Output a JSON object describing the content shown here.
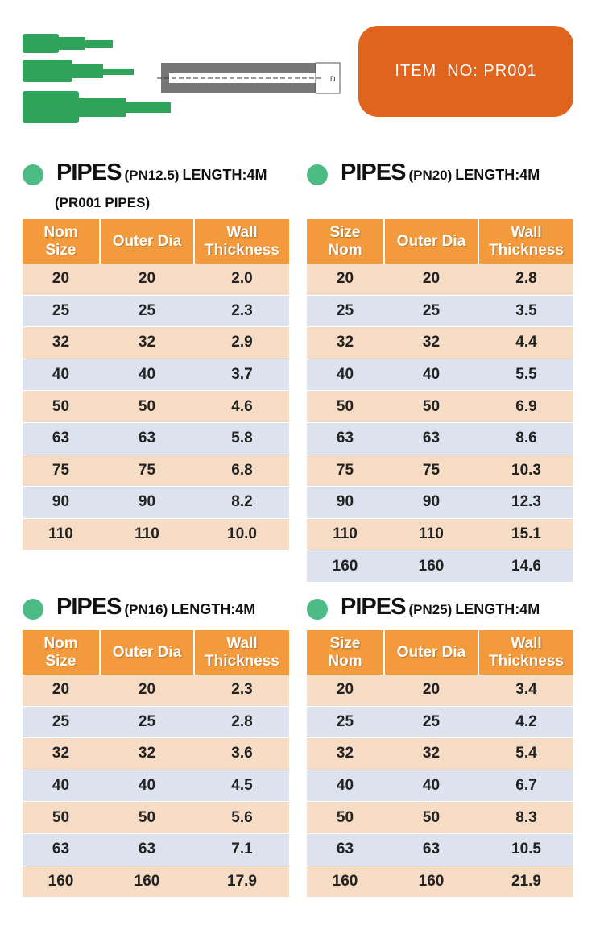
{
  "item_no": "ITEM  NO: PR001",
  "diagram_label": "D",
  "tables": [
    {
      "title": {
        "main": "PIPES",
        "spec": "(PN12.5)",
        "length": "LENGTH:4M"
      },
      "subtitle": "(PR001 PIPES)",
      "header": [
        [
          "Nom",
          "Size"
        ],
        [
          "Outer Dia"
        ],
        [
          "Wall",
          "Thickness"
        ]
      ],
      "rows": [
        [
          "20",
          "20",
          "2.0"
        ],
        [
          "25",
          "25",
          "2.3"
        ],
        [
          "32",
          "32",
          "2.9"
        ],
        [
          "40",
          "40",
          "3.7"
        ],
        [
          "50",
          "50",
          "4.6"
        ],
        [
          "63",
          "63",
          "5.8"
        ],
        [
          "75",
          "75",
          "6.8"
        ],
        [
          "90",
          "90",
          "8.2"
        ],
        [
          "110",
          "110",
          "10.0"
        ]
      ]
    },
    {
      "title": {
        "main": "PIPES",
        "spec": "(PN20)",
        "length": "LENGTH:4M"
      },
      "header": [
        [
          "Size",
          "Nom"
        ],
        [
          "Outer Dia"
        ],
        [
          "Wall",
          "Thickness"
        ]
      ],
      "rows": [
        [
          "20",
          "20",
          "2.8"
        ],
        [
          "25",
          "25",
          "3.5"
        ],
        [
          "32",
          "32",
          "4.4"
        ],
        [
          "40",
          "40",
          "5.5"
        ],
        [
          "50",
          "50",
          "6.9"
        ],
        [
          "63",
          "63",
          "8.6"
        ],
        [
          "75",
          "75",
          "10.3"
        ],
        [
          "90",
          "90",
          "12.3"
        ],
        [
          "110",
          "110",
          "15.1"
        ],
        [
          "160",
          "160",
          "14.6"
        ]
      ]
    },
    {
      "title": {
        "main": "PIPES",
        "spec": "(PN16)",
        "length": "LENGTH:4M"
      },
      "header": [
        [
          "Nom",
          "Size"
        ],
        [
          "Outer Dia"
        ],
        [
          "Wall",
          "Thickness"
        ]
      ],
      "rows": [
        [
          "20",
          "20",
          "2.3"
        ],
        [
          "25",
          "25",
          "2.8"
        ],
        [
          "32",
          "32",
          "3.6"
        ],
        [
          "40",
          "40",
          "4.5"
        ],
        [
          "50",
          "50",
          "5.6"
        ],
        [
          "63",
          "63",
          "7.1"
        ],
        [
          "160",
          "160",
          "17.9"
        ]
      ]
    },
    {
      "title": {
        "main": "PIPES",
        "spec": "(PN25)",
        "length": "LENGTH:4M"
      },
      "header": [
        [
          "Size",
          "Nom"
        ],
        [
          "Outer Dia"
        ],
        [
          "Wall",
          "Thickness"
        ]
      ],
      "rows": [
        [
          "20",
          "20",
          "3.4"
        ],
        [
          "25",
          "25",
          "4.2"
        ],
        [
          "32",
          "32",
          "5.4"
        ],
        [
          "40",
          "40",
          "6.7"
        ],
        [
          "50",
          "50",
          "8.3"
        ],
        [
          "63",
          "63",
          "10.5"
        ],
        [
          "160",
          "160",
          "21.9"
        ]
      ]
    }
  ]
}
